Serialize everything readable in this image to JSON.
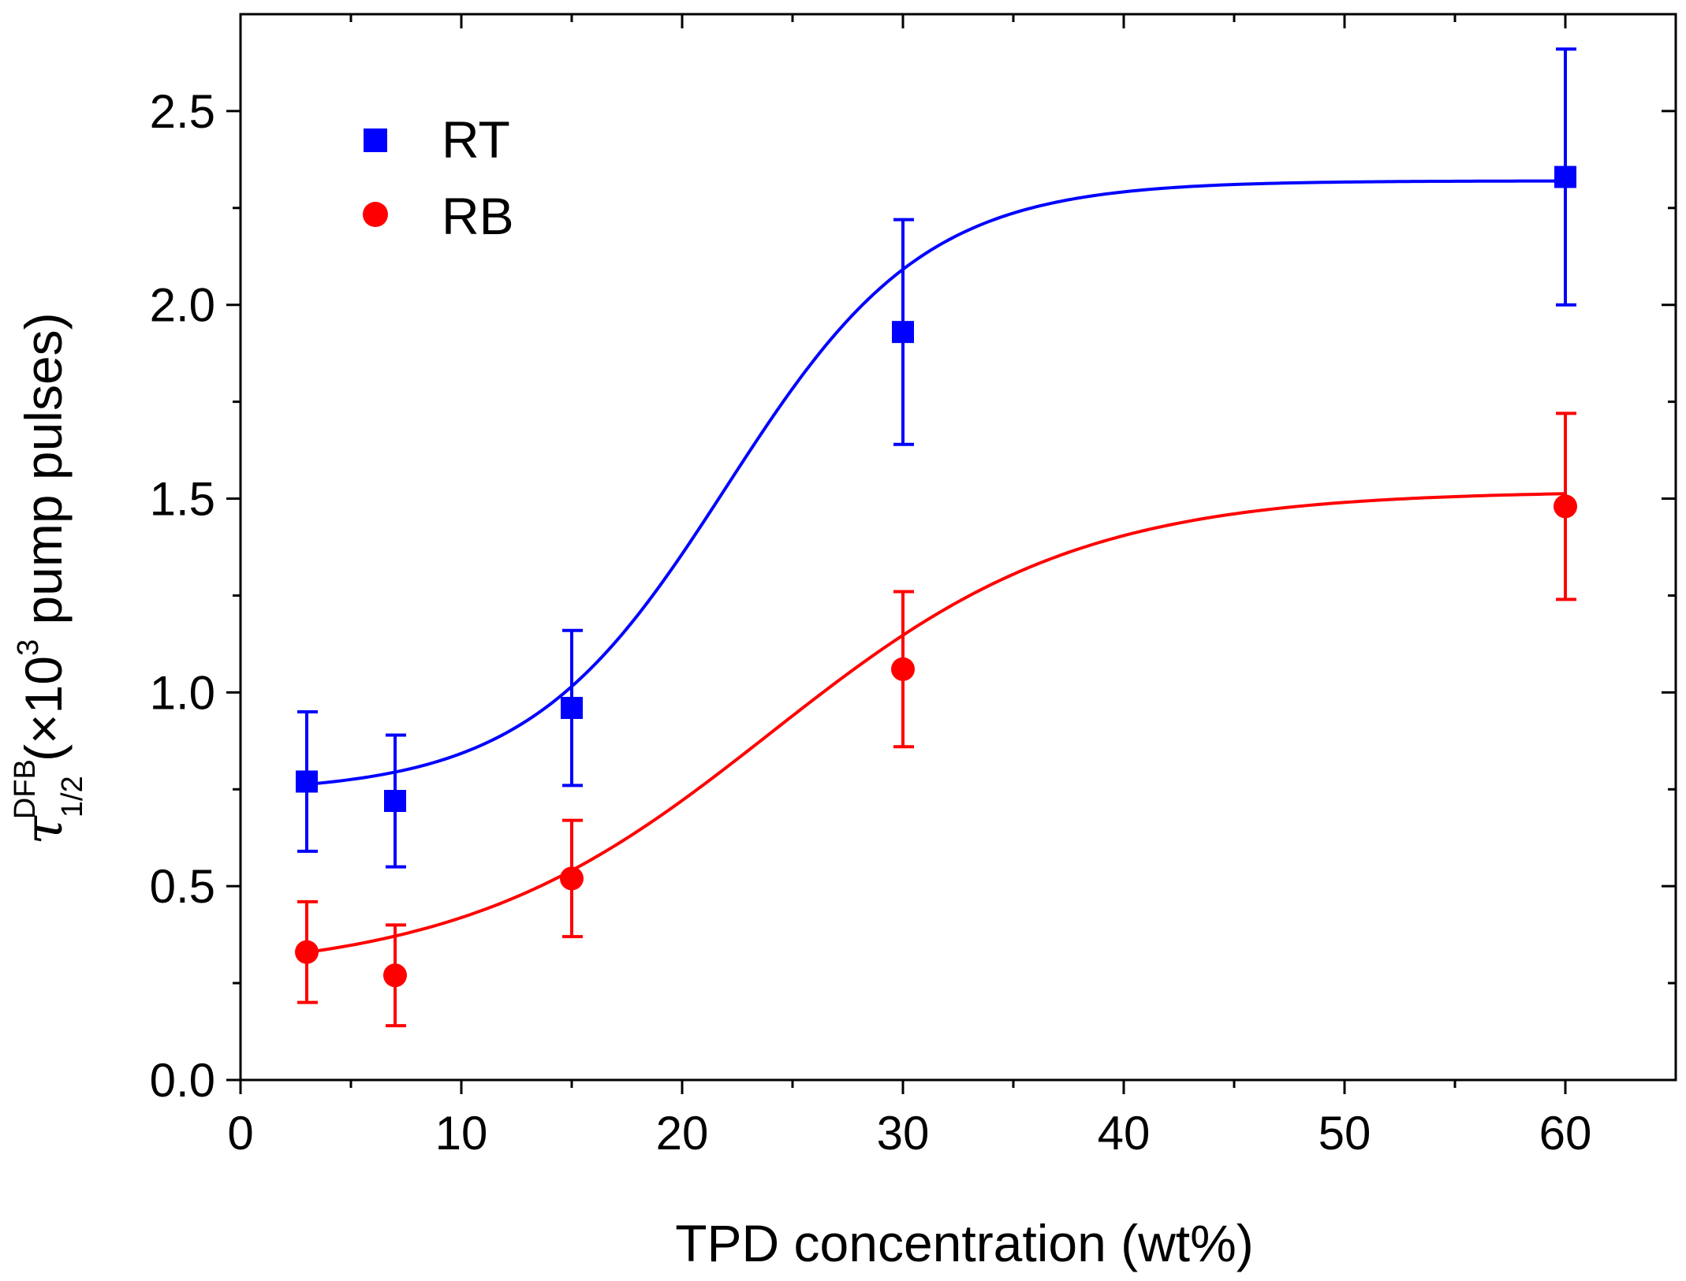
{
  "chart_data": {
    "type": "scatter",
    "title": "",
    "xlabel": "TPD concentration (wt%)",
    "ylabel": {
      "symbol": "τ",
      "superscript": "DFB",
      "subscript": "1/2",
      "prefix": " (×10",
      "exponent": "3",
      "suffix": " pump pulses)"
    },
    "xlim": [
      0,
      65
    ],
    "ylim": [
      0,
      2.75
    ],
    "x_ticks": [
      0,
      10,
      20,
      30,
      40,
      50,
      60
    ],
    "y_ticks": [
      0.0,
      0.5,
      1.0,
      1.5,
      2.0,
      2.5
    ],
    "x_tick_labels": [
      "0",
      "10",
      "20",
      "30",
      "40",
      "50",
      "60"
    ],
    "y_tick_labels": [
      "0.0",
      "0.5",
      "1.0",
      "1.5",
      "2.0",
      "2.5"
    ],
    "grid": false,
    "legend_position": "top-left",
    "series": [
      {
        "name": "RT",
        "color": "#0000ff",
        "marker": "square",
        "x": [
          3,
          7,
          15,
          30,
          60
        ],
        "y": [
          0.77,
          0.72,
          0.96,
          1.93,
          2.33
        ],
        "err": [
          0.18,
          0.17,
          0.2,
          0.29,
          0.33
        ],
        "fit": {
          "model": "sigmoid",
          "A1": 0.74,
          "A2": 2.32,
          "x0": 22,
          "dx": 4.5
        }
      },
      {
        "name": "RB",
        "color": "#ff0000",
        "marker": "circle",
        "x": [
          3,
          7,
          15,
          30,
          60
        ],
        "y": [
          0.33,
          0.27,
          0.52,
          1.06,
          1.48
        ],
        "err": [
          0.13,
          0.13,
          0.15,
          0.2,
          0.24
        ],
        "fit": {
          "model": "sigmoid",
          "A1": 0.27,
          "A2": 1.52,
          "x0": 24,
          "dx": 7
        }
      }
    ]
  }
}
